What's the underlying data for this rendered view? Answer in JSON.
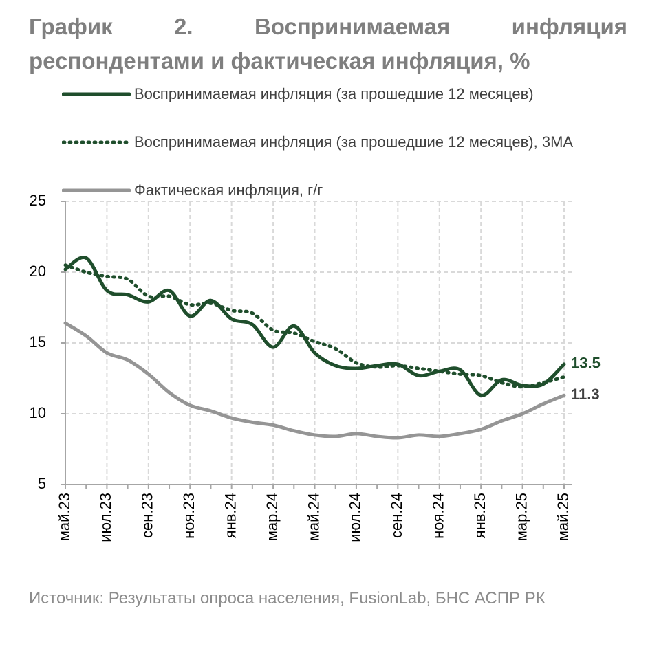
{
  "chart_data": {
    "type": "line",
    "title": "График 2. Воспринимаемая инфляция респондентами и фактическая инфляция, %",
    "source": "Источник: Результаты опроса населения, FusionLab, БНС АСПР РК",
    "categories": [
      "май.23",
      null,
      "июл.23",
      null,
      "сен.23",
      null,
      "ноя.23",
      null,
      "янв.24",
      null,
      "мар.24",
      null,
      "май.24",
      null,
      "июл.24",
      null,
      "сен.24",
      null,
      "ноя.24",
      null,
      "янв.25",
      null,
      "мар.25",
      null,
      "май.25"
    ],
    "series": [
      {
        "name": "Воспринимаемая инфляция (за прошедшие 12 месяцев)",
        "color": "#1f4e2c",
        "line_style": "solid",
        "end_label": true,
        "values": [
          20.2,
          21.0,
          18.7,
          18.4,
          17.9,
          18.7,
          16.9,
          18.0,
          16.7,
          16.3,
          14.7,
          16.2,
          14.3,
          13.4,
          13.2,
          13.4,
          13.5,
          12.7,
          13.0,
          13.1,
          11.3,
          12.4,
          12.0,
          12.1,
          13.5
        ]
      },
      {
        "name": "Воспринимаемая инфляция (за прошедшие 12 месяцев), 3MA",
        "color": "#1f4e2c",
        "line_style": "dotted",
        "end_label": false,
        "values": [
          20.5,
          20.0,
          19.7,
          19.5,
          18.3,
          18.3,
          17.7,
          17.8,
          17.3,
          17.1,
          15.9,
          15.7,
          15.1,
          14.6,
          13.6,
          13.3,
          13.4,
          13.2,
          13.0,
          12.8,
          12.7,
          12.2,
          11.9,
          12.2,
          12.6
        ]
      },
      {
        "name": "Фактическая инфляция, г/г",
        "color": "#959595",
        "line_style": "solid",
        "end_label": true,
        "values": [
          16.4,
          15.5,
          14.3,
          13.8,
          12.8,
          11.5,
          10.6,
          10.2,
          9.7,
          9.4,
          9.2,
          8.8,
          8.5,
          8.4,
          8.6,
          8.4,
          8.3,
          8.5,
          8.4,
          8.6,
          8.9,
          9.5,
          10.0,
          10.7,
          11.3
        ]
      }
    ],
    "ylim": [
      5,
      25
    ],
    "yticks": [
      5,
      10,
      15,
      20,
      25
    ],
    "grid": true
  }
}
